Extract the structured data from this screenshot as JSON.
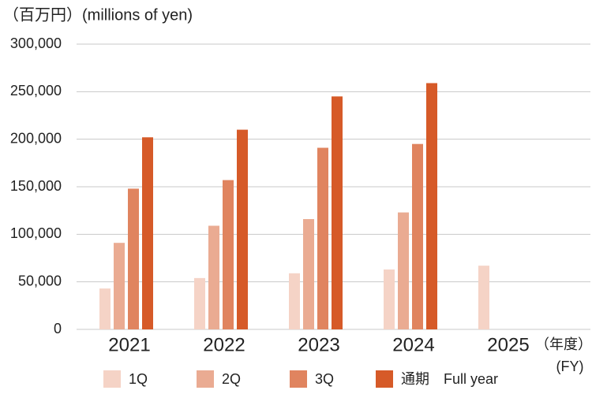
{
  "chart_data": {
    "type": "bar",
    "y_label": "（百万円）(millions of yen)",
    "x_label": "（年度）",
    "x_label_en": "(FY)",
    "categories": [
      "2021",
      "2022",
      "2023",
      "2024",
      "2025"
    ],
    "series": [
      {
        "name": "1Q",
        "color": "#f5d3c6",
        "values": [
          43000,
          54000,
          59000,
          63000,
          67000
        ]
      },
      {
        "name": "2Q",
        "color": "#eaab92",
        "values": [
          91000,
          109000,
          116000,
          123000,
          null
        ]
      },
      {
        "name": "3Q",
        "color": "#e0845f",
        "values": [
          148000,
          157000,
          191000,
          195000,
          null
        ]
      },
      {
        "name": "通期　Full year",
        "color": "#d65a28",
        "values": [
          202000,
          210000,
          245000,
          259000,
          null
        ]
      }
    ],
    "ylim": [
      0,
      300000
    ],
    "yticks": [
      0,
      {
        "value": 50000,
        "label": "50,000"
      },
      {
        "value": 100000,
        "label": "100,000"
      },
      {
        "value": 150000,
        "label": "150,000"
      },
      {
        "value": 200000,
        "label": "200,000"
      },
      {
        "value": 250000,
        "label": "250,000"
      },
      {
        "value": 300000,
        "label": "300,000"
      }
    ],
    "grid": true
  }
}
